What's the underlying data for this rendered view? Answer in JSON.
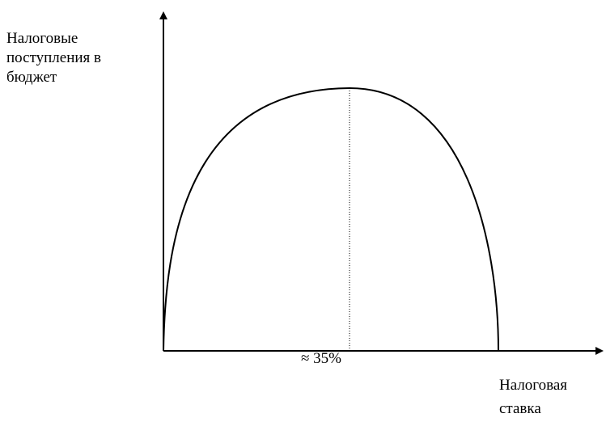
{
  "chart_data": {
    "type": "line",
    "ylabel": [
      "Налоговые",
      "поступления в",
      "бюджет"
    ],
    "xlabel": [
      "Налоговая",
      "ставка"
    ],
    "peak_label": "≈ 35%",
    "curve": "inverted-u",
    "peak_x_percent": 35,
    "zero_crossings_x_percent": [
      0,
      70
    ],
    "colors": {
      "axes": "#000000",
      "curve": "#000000",
      "peak_line": "#000000"
    }
  }
}
